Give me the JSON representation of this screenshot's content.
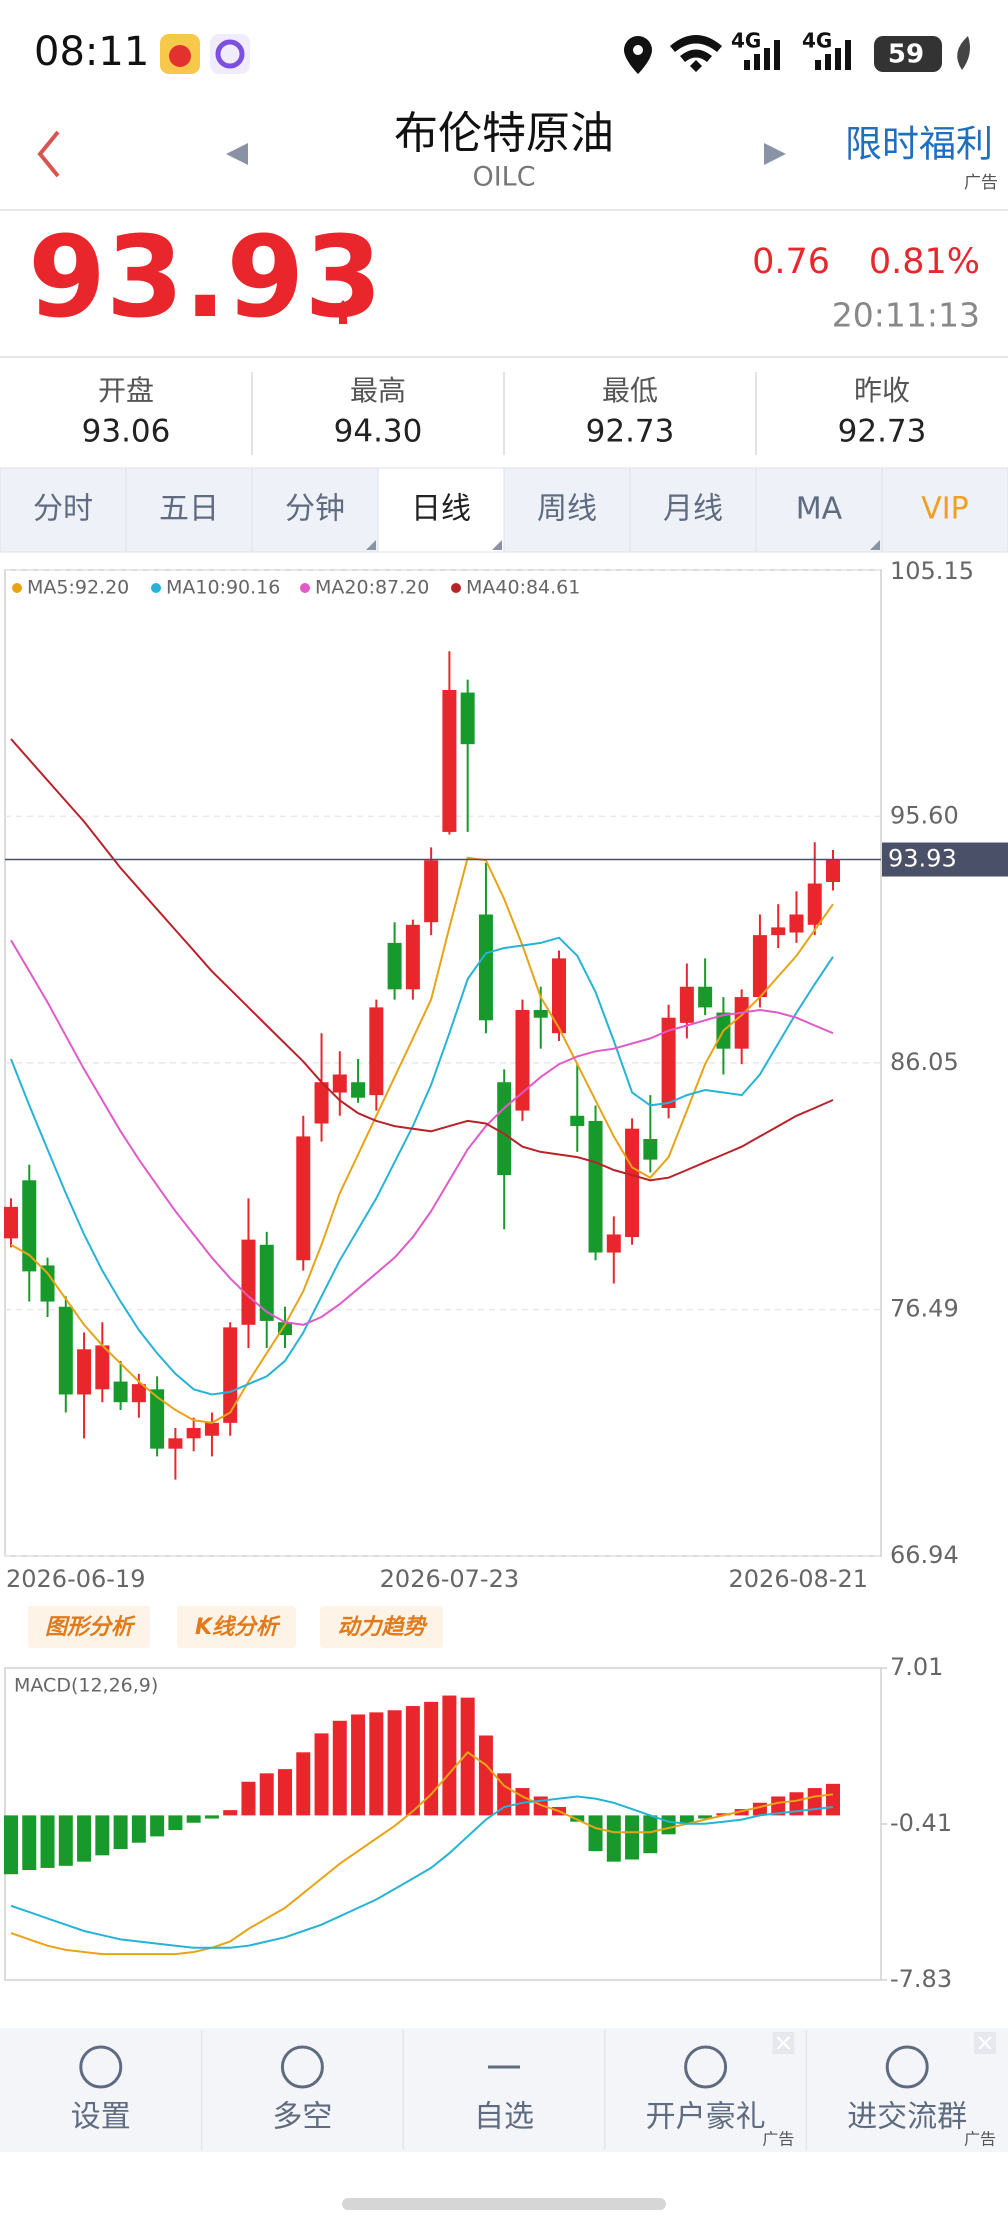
{
  "status": {
    "time": "08:11",
    "network": [
      "4G",
      "4G"
    ],
    "battery": "59"
  },
  "header": {
    "title": "布伦特原油",
    "code": "OILC",
    "promo": "限时福利",
    "ad": "广告"
  },
  "quote": {
    "price": "93.93",
    "change": "0.76",
    "change_pct": "0.81%",
    "time": "20:11:13"
  },
  "stats": [
    {
      "label": "开盘",
      "value": "93.06"
    },
    {
      "label": "最高",
      "value": "94.30"
    },
    {
      "label": "最低",
      "value": "92.73"
    },
    {
      "label": "昨收",
      "value": "92.73"
    }
  ],
  "tabs": [
    "分时",
    "五日",
    "分钟",
    "日线",
    "周线",
    "月线",
    "MA",
    "VIP"
  ],
  "tools": [
    "图形分析",
    "K线分析",
    "动力趋势"
  ],
  "nav": [
    {
      "label": "设置"
    },
    {
      "label": "多空"
    },
    {
      "label": "自选"
    },
    {
      "label": "开户豪礼",
      "ad": "广告"
    },
    {
      "label": "进交流群",
      "ad": "广告"
    }
  ],
  "chart_data": [
    {
      "type": "candlestick",
      "categories": [
        "2026-06-19",
        null,
        null,
        null,
        null,
        null,
        null,
        null,
        null,
        null,
        null,
        null,
        null,
        null,
        null,
        null,
        null,
        null,
        null,
        null,
        null,
        null,
        null,
        null,
        "2026-07-23",
        null,
        null,
        null,
        null,
        null,
        null,
        null,
        null,
        null,
        null,
        null,
        null,
        null,
        null,
        null,
        null,
        null,
        null,
        null,
        null,
        "2026-08-21"
      ],
      "open": [
        79.25,
        81.5,
        78.2,
        76.6,
        73.2,
        73.4,
        73.7,
        72.9,
        73.4,
        71.1,
        71.5,
        71.6,
        72.1,
        75.9,
        79.0,
        76.0,
        78.4,
        83.7,
        84.9,
        85.3,
        84.8,
        90.7,
        88.9,
        91.5,
        95.0,
        100.4,
        91.8,
        85.3,
        84.2,
        88.1,
        87.2,
        84.0,
        83.8,
        78.7,
        79.3,
        83.1,
        84.3,
        87.6,
        89.0,
        88.0,
        86.6,
        88.6,
        91.0,
        91.1,
        91.4,
        93.06
      ],
      "high": [
        80.8,
        82.1,
        78.5,
        77.0,
        75.6,
        76.0,
        74.5,
        74.0,
        73.9,
        71.9,
        72.3,
        72.5,
        76.0,
        80.8,
        79.5,
        76.6,
        84.0,
        87.2,
        86.5,
        86.2,
        88.5,
        91.5,
        91.6,
        94.4,
        102.0,
        100.9,
        93.8,
        85.8,
        88.5,
        89.0,
        90.4,
        86.0,
        84.4,
        80.1,
        83.9,
        84.8,
        88.3,
        89.9,
        90.1,
        88.6,
        88.9,
        91.8,
        92.2,
        92.7,
        94.6,
        94.3
      ],
      "low": [
        78.9,
        76.8,
        76.2,
        72.5,
        71.5,
        72.9,
        72.6,
        72.3,
        70.8,
        69.9,
        71.0,
        70.8,
        71.6,
        75.0,
        75.0,
        75.0,
        78.0,
        83.0,
        84.0,
        84.5,
        84.2,
        88.5,
        88.5,
        91.0,
        94.9,
        95.0,
        87.2,
        79.6,
        83.8,
        86.6,
        86.9,
        82.6,
        78.4,
        77.5,
        79.0,
        81.8,
        83.9,
        87.0,
        87.9,
        85.6,
        86.0,
        88.2,
        90.5,
        90.7,
        91.0,
        92.73
      ],
      "close": [
        80.47,
        77.97,
        76.8,
        73.2,
        74.95,
        75.1,
        72.9,
        73.6,
        71.1,
        71.5,
        71.9,
        72.1,
        75.8,
        79.2,
        76.05,
        75.5,
        83.2,
        85.3,
        85.6,
        84.7,
        88.2,
        88.9,
        91.4,
        93.9,
        100.5,
        98.4,
        87.7,
        81.7,
        88.1,
        87.8,
        90.1,
        83.6,
        78.7,
        79.4,
        83.5,
        82.3,
        87.8,
        89.0,
        88.2,
        86.6,
        88.6,
        91.0,
        91.3,
        91.8,
        93.0,
        93.93
      ],
      "up_color": "#e8262c",
      "down_color": "#179a2b",
      "series": [
        {
          "name": "MA5:92.20",
          "color": "#e8a317",
          "values": [
            79.0,
            78.6,
            77.9,
            76.9,
            75.9,
            75.1,
            74.4,
            73.7,
            73.1,
            72.6,
            72.2,
            72.1,
            72.5,
            73.7,
            74.8,
            75.9,
            77.2,
            79.0,
            81.0,
            82.5,
            84.0,
            85.5,
            87.0,
            88.5,
            91.3,
            94.0,
            93.9,
            92.4,
            90.6,
            88.6,
            87.4,
            86.0,
            84.6,
            83.2,
            82.0,
            81.6,
            82.4,
            84.2,
            86.0,
            87.3,
            87.9,
            88.6,
            89.4,
            90.2,
            91.2,
            92.2
          ]
        },
        {
          "name": "MA10:90.16",
          "color": "#26b3d6",
          "values": [
            86.2,
            84.4,
            82.7,
            81.0,
            79.4,
            78.0,
            76.8,
            75.7,
            74.8,
            74.0,
            73.4,
            73.2,
            73.3,
            73.6,
            73.9,
            74.5,
            75.6,
            77.0,
            78.4,
            79.6,
            80.8,
            82.2,
            83.6,
            85.2,
            87.2,
            89.3,
            90.3,
            90.5,
            90.6,
            90.7,
            90.9,
            90.2,
            88.8,
            86.9,
            84.9,
            84.4,
            84.5,
            84.8,
            85.0,
            84.9,
            84.8,
            85.6,
            86.8,
            88.0,
            89.1,
            90.16
          ]
        },
        {
          "name": "MA20:87.20",
          "color": "#e05ac8",
          "values": [
            90.8,
            89.6,
            88.4,
            87.1,
            85.8,
            84.6,
            83.4,
            82.3,
            81.3,
            80.3,
            79.4,
            78.5,
            77.7,
            77.0,
            76.4,
            76.0,
            75.9,
            76.2,
            76.7,
            77.3,
            77.9,
            78.5,
            79.3,
            80.3,
            81.5,
            82.7,
            83.6,
            84.3,
            84.9,
            85.5,
            86.0,
            86.3,
            86.5,
            86.6,
            86.8,
            87.0,
            87.3,
            87.5,
            87.7,
            87.9,
            88.0,
            88.1,
            88.0,
            87.8,
            87.5,
            87.2
          ]
        },
        {
          "name": "MA40:84.61",
          "color": "#b8232a",
          "values": [
            98.6,
            97.8,
            97.0,
            96.2,
            95.4,
            94.5,
            93.6,
            92.8,
            92.0,
            91.2,
            90.4,
            89.6,
            88.9,
            88.2,
            87.5,
            86.8,
            86.1,
            85.3,
            84.6,
            84.1,
            83.8,
            83.6,
            83.5,
            83.4,
            83.6,
            83.8,
            83.7,
            83.3,
            82.8,
            82.6,
            82.5,
            82.4,
            82.2,
            81.9,
            81.7,
            81.5,
            81.6,
            81.9,
            82.2,
            82.5,
            82.8,
            83.2,
            83.6,
            84.0,
            84.3,
            84.61
          ]
        }
      ],
      "ylim": [
        66.94,
        105.15
      ],
      "yticks": [
        105.15,
        {
          "value": 95.6,
          "label": "95.60"
        },
        86.05,
        76.49,
        66.94
      ],
      "current_price": 93.93,
      "grid": true
    },
    {
      "type": "macd",
      "label": "MACD(12,26,9)",
      "bars": [
        -2.8,
        -2.6,
        -2.5,
        -2.4,
        -2.2,
        -1.9,
        -1.6,
        -1.3,
        -1.0,
        -0.7,
        -0.35,
        -0.15,
        0.25,
        1.6,
        2.0,
        2.2,
        3.0,
        3.9,
        4.5,
        4.8,
        4.9,
        5.0,
        5.2,
        5.4,
        5.7,
        5.6,
        3.8,
        2.0,
        1.3,
        0.9,
        0.4,
        -0.3,
        -1.7,
        -2.2,
        -2.1,
        -1.8,
        -0.9,
        -0.4,
        -0.15,
        0.1,
        0.3,
        0.6,
        0.9,
        1.1,
        1.3,
        1.5
      ],
      "up_color": "#e8262c",
      "down_color": "#179a2b",
      "lines": [
        {
          "color": "#e8a317",
          "values": [
            -5.6,
            -5.9,
            -6.2,
            -6.4,
            -6.5,
            -6.6,
            -6.6,
            -6.6,
            -6.6,
            -6.6,
            -6.5,
            -6.3,
            -6.0,
            -5.4,
            -4.9,
            -4.4,
            -3.7,
            -3.0,
            -2.3,
            -1.7,
            -1.1,
            -0.5,
            0.2,
            1.0,
            2.0,
            3.0,
            2.4,
            1.4,
            0.9,
            0.5,
            0.2,
            -0.2,
            -0.6,
            -0.8,
            -0.8,
            -0.8,
            -0.6,
            -0.4,
            -0.2,
            0.0,
            0.2,
            0.4,
            0.6,
            0.7,
            0.9,
            1.0
          ]
        },
        {
          "color": "#26b3d6",
          "values": [
            -4.3,
            -4.6,
            -4.9,
            -5.2,
            -5.5,
            -5.7,
            -5.9,
            -6.0,
            -6.1,
            -6.2,
            -6.3,
            -6.3,
            -6.3,
            -6.2,
            -6.0,
            -5.8,
            -5.5,
            -5.2,
            -4.8,
            -4.4,
            -4.0,
            -3.5,
            -3.0,
            -2.5,
            -1.8,
            -1.0,
            -0.2,
            0.4,
            0.6,
            0.7,
            0.8,
            0.9,
            0.8,
            0.6,
            0.3,
            0.0,
            -0.3,
            -0.4,
            -0.4,
            -0.3,
            -0.2,
            0.0,
            0.1,
            0.2,
            0.3,
            0.4
          ]
        }
      ],
      "ylim": [
        -7.83,
        7.01
      ],
      "yticks": [
        7.01,
        -0.41,
        -7.83
      ]
    }
  ]
}
